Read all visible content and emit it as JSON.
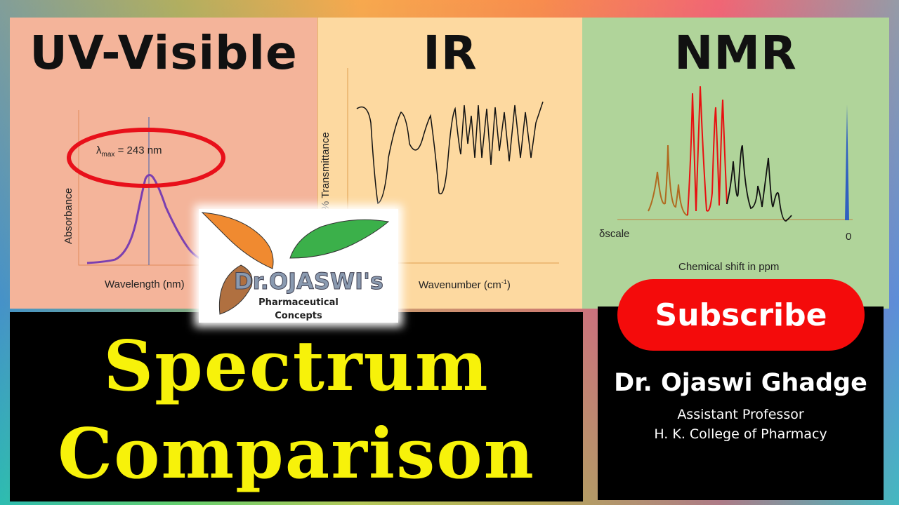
{
  "uv": {
    "title": "UV-Visible",
    "ylabel": "Absorbance",
    "xlabel": "Wavelength (nm)",
    "lambda_symbol": "λ",
    "lambda_sub": "max",
    "lambda_value": "= 243 nm"
  },
  "ir": {
    "title": "IR",
    "ylabel": "% Transmittance",
    "xlabel_main": "Wavenumber (cm",
    "xlabel_sup": "-1",
    "xlabel_end": ")"
  },
  "nmr": {
    "title": "NMR",
    "scale_label": "δscale",
    "zero_label": "0",
    "xlabel": "Chemical shift in ppm"
  },
  "logo": {
    "brand": "Dr.OJASWI's",
    "line1": "Pharmaceutical",
    "line2": "Concepts"
  },
  "main_title": {
    "line1": "Spectrum",
    "line2": "Comparison"
  },
  "subscribe": {
    "label": "Subscribe"
  },
  "author": {
    "name": "Dr. Ojaswi Ghadge",
    "role": "Assistant Professor",
    "institution": "H. K. College of Pharmacy"
  },
  "colors": {
    "title_yellow": "#f7f20a",
    "subscribe_red": "#f40b0b",
    "uv_panel": "#f4b49a",
    "ir_panel": "#fdd9a0",
    "nmr_panel": "#b0d49a"
  }
}
